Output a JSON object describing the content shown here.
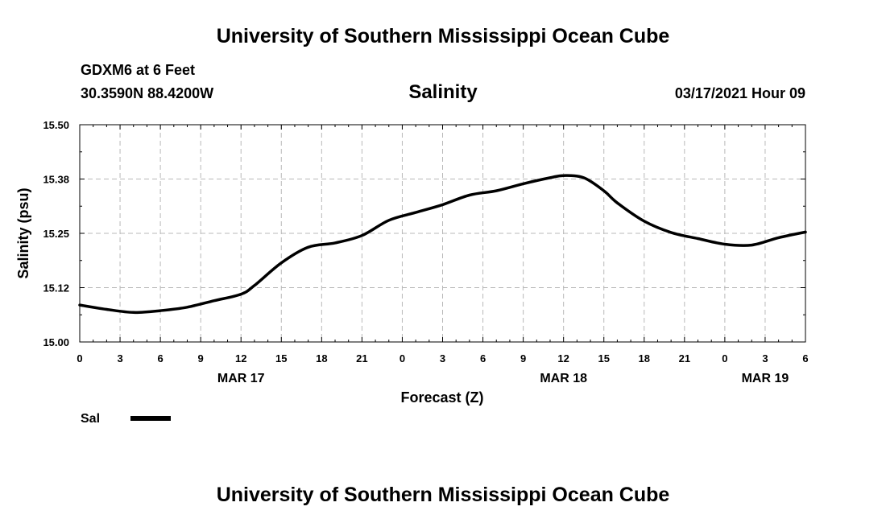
{
  "header": {
    "title": "University of Southern Mississippi Ocean Cube",
    "station": "GDXM6 at 6 Feet",
    "coords": "30.3590N 88.4200W",
    "datetime": "03/17/2021 Hour 09"
  },
  "footer": {
    "title": "University of Southern Mississippi Ocean Cube"
  },
  "legend": {
    "label": "Sal"
  },
  "colors": {
    "line": "#000000",
    "grid": "#b8b8b8",
    "background": "#ffffff"
  },
  "chart_data": {
    "type": "line",
    "title": "Salinity",
    "xlabel": "Forecast (Z)",
    "ylabel": "Salinity (psu)",
    "ylim": [
      15.0,
      15.5
    ],
    "y_ticks": [
      "15.00",
      "15.12",
      "15.25",
      "15.38",
      "15.50"
    ],
    "x_range_hours": [
      0,
      54
    ],
    "x_ticks": [
      "0",
      "3",
      "6",
      "9",
      "12",
      "15",
      "18",
      "21",
      "0",
      "3",
      "6",
      "9",
      "12",
      "15",
      "18",
      "21",
      "0",
      "3",
      "6"
    ],
    "date_labels": [
      {
        "label": "MAR 17",
        "hour": 12
      },
      {
        "label": "MAR 18",
        "hour": 36
      },
      {
        "label": "MAR 19",
        "hour": 51
      }
    ],
    "grid": true,
    "series": [
      {
        "name": "Sal",
        "x": [
          0,
          2,
          4,
          6,
          8,
          10,
          12,
          13,
          15,
          17,
          19,
          21,
          23,
          25,
          27,
          29,
          31,
          33,
          35,
          36,
          37.5,
          39,
          40,
          42,
          44,
          46,
          48,
          50,
          52,
          54
        ],
        "y": [
          15.085,
          15.075,
          15.068,
          15.072,
          15.08,
          15.095,
          15.11,
          15.13,
          15.182,
          15.218,
          15.228,
          15.245,
          15.28,
          15.298,
          15.316,
          15.338,
          15.348,
          15.364,
          15.378,
          15.383,
          15.378,
          15.348,
          15.32,
          15.278,
          15.252,
          15.238,
          15.225,
          15.223,
          15.24,
          15.253
        ]
      }
    ]
  }
}
